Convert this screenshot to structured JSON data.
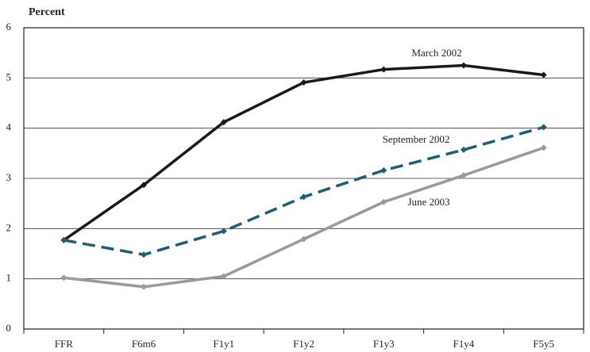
{
  "chart_data": {
    "type": "line",
    "title": "Percent",
    "categories": [
      "FFR",
      "F6m6",
      "F1y1",
      "F1y2",
      "F1y3",
      "F1y4",
      "F5y5"
    ],
    "series": [
      {
        "name": "March 2002",
        "color": "#1a1a1a",
        "dash": false,
        "values": [
          1.77,
          2.87,
          4.12,
          4.91,
          5.17,
          5.25,
          5.06
        ]
      },
      {
        "name": "September 2002",
        "color": "#1d5e78",
        "dash": true,
        "values": [
          1.77,
          1.48,
          1.95,
          2.63,
          3.16,
          3.57,
          4.02
        ]
      },
      {
        "name": "June 2003",
        "color": "#9a9a9a",
        "dash": false,
        "values": [
          1.02,
          0.84,
          1.05,
          1.79,
          2.53,
          3.06,
          3.61
        ]
      }
    ],
    "ylim": [
      0,
      6
    ],
    "yticks": [
      0,
      1,
      2,
      3,
      4,
      5,
      6
    ],
    "grid": true
  }
}
